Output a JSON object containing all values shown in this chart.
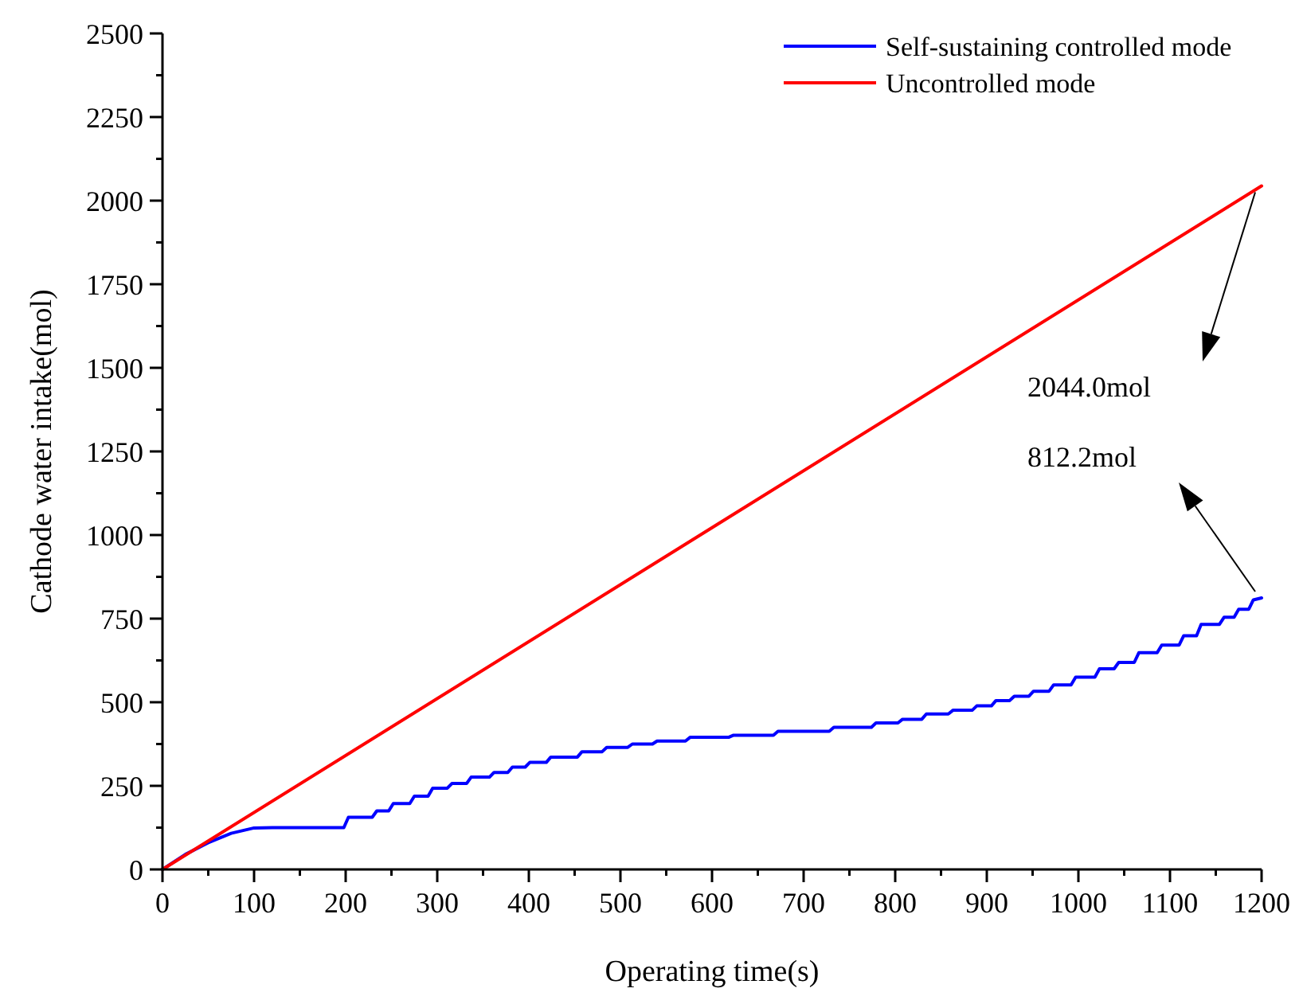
{
  "chart_data": {
    "type": "line",
    "xlabel": "Operating time(s)",
    "ylabel": "Cathode water intake(mol)",
    "xlim": [
      0,
      1200
    ],
    "xticks": [
      0,
      100,
      200,
      300,
      400,
      500,
      600,
      700,
      800,
      900,
      1000,
      1100,
      1200
    ],
    "ylim": [
      0,
      2500
    ],
    "yticks": [
      0,
      250,
      500,
      750,
      1000,
      1250,
      1500,
      1750,
      2000,
      2250,
      2500
    ],
    "grid": false,
    "legend": "top right",
    "marker": "none",
    "line_style": "solid",
    "series": [
      {
        "name": "Self-sustaining controlled mode",
        "color": "#0000ff",
        "x": [
          0,
          25,
          50,
          75,
          100,
          120,
          198,
          203,
          229,
          234,
          247,
          252,
          270,
          275,
          290,
          295,
          311,
          316,
          332,
          337,
          357,
          362,
          377,
          382,
          396,
          401,
          419,
          424,
          453,
          458,
          480,
          485,
          508,
          513,
          535,
          540,
          571,
          576,
          618,
          623,
          667,
          672,
          728,
          733,
          774,
          779,
          803,
          808,
          829,
          834,
          858,
          863,
          884,
          889,
          905,
          910,
          925,
          930,
          946,
          951,
          968,
          973,
          992,
          997,
          1018,
          1023,
          1039,
          1044,
          1061,
          1066,
          1086,
          1091,
          1110,
          1115,
          1129,
          1134,
          1154,
          1159,
          1170,
          1175,
          1186,
          1191,
          1200
        ],
        "values": [
          0,
          45,
          80,
          108,
          124,
          125,
          125,
          156,
          156,
          175,
          175,
          197,
          197,
          219,
          219,
          243,
          243,
          257,
          257,
          276,
          276,
          290,
          290,
          306,
          306,
          320,
          320,
          336,
          336,
          352,
          352,
          365,
          365,
          375,
          375,
          384,
          384,
          395,
          395,
          401,
          401,
          413,
          413,
          425,
          425,
          438,
          438,
          449,
          449,
          465,
          465,
          476,
          476,
          489,
          489,
          505,
          505,
          518,
          518,
          533,
          533,
          552,
          552,
          575,
          575,
          600,
          600,
          619,
          619,
          648,
          648,
          671,
          671,
          699,
          699,
          733,
          733,
          754,
          754,
          778,
          778,
          806,
          812
        ]
      },
      {
        "name": "Uncontrolled mode",
        "color": "#ff0000",
        "x": [
          0,
          600,
          1200
        ],
        "values": [
          0,
          1022,
          2044
        ]
      }
    ],
    "annotations": [
      "2044.0mol",
      "812.2mol"
    ]
  }
}
